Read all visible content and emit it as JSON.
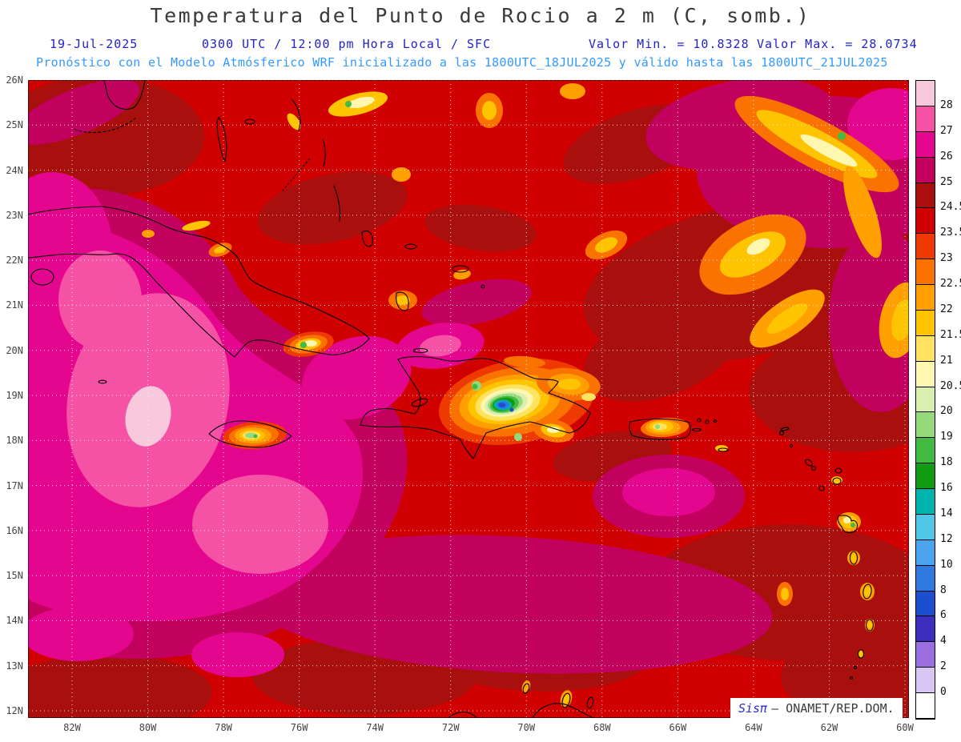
{
  "header": {
    "title": "Temperatura del Punto de Rocio a 2 m (C, somb.)",
    "date": "19-Jul-2025",
    "time": "0300 UTC / 12:00 pm Hora Local / SFC",
    "min_label": "Valor Min. = 10.8328",
    "max_label": "Valor Max. = 28.0734",
    "model_line": "Pronóstico con el Modelo Atmósferico WRF inicializado a las 1800UTC_18JUL2025 y válido hasta las  1800UTC_21JUL2025"
  },
  "map": {
    "lat_labels": [
      "26N",
      "25N",
      "24N",
      "23N",
      "22N",
      "21N",
      "20N",
      "19N",
      "18N",
      "17N",
      "16N",
      "15N",
      "14N",
      "13N",
      "12N"
    ],
    "lon_labels": [
      "82W",
      "80W",
      "78W",
      "76W",
      "74W",
      "72W",
      "70W",
      "68W",
      "66W",
      "64W",
      "62W",
      "60W"
    ]
  },
  "colorbar": {
    "cells": [
      "#f8c8dc",
      "#f552a6",
      "#e5068f",
      "#c2005e",
      "#a80f0d",
      "#d10000",
      "#ee3a00",
      "#fa7300",
      "#ffa000",
      "#ffc400",
      "#ffe35e",
      "#fff6b0",
      "#d8efad",
      "#94da7a",
      "#41bb41",
      "#119c11",
      "#00b4ae",
      "#4fc8e8",
      "#4aa5ee",
      "#2e7ae0",
      "#1b4fd0",
      "#3d2fbd",
      "#9a6ede",
      "#d9c6f2",
      "#ffffff"
    ],
    "labels": [
      "28",
      "27",
      "26",
      "25",
      "24.5",
      "23.5",
      "23",
      "22.5",
      "22",
      "21.5",
      "21",
      "20.5",
      "20",
      "19",
      "18",
      "16",
      "14",
      "12",
      "10",
      "8",
      "6",
      "4",
      "2",
      "0"
    ]
  },
  "watermark": {
    "brand": "Sisπ",
    "text": "– ONAMET/REP.DOM."
  },
  "chart_data": {
    "type": "heatmap",
    "title": "Temperatura del Punto de Rocio a 2 m (C, somb.)",
    "variable": "Dew point temperature at 2 m",
    "units": "C",
    "valid_time": "19-Jul-2025 0300 UTC / 12:00 pm Hora Local / SFC",
    "value_min": 10.8328,
    "value_max": 28.0734,
    "model": "WRF inicializado 1800UTC_18JUL2025, válido hasta 1800UTC_21JUL2025",
    "lon_range": [
      "82W",
      "60W"
    ],
    "lat_range": [
      "12N",
      "26N"
    ],
    "contour_levels": [
      0,
      2,
      4,
      6,
      8,
      10,
      12,
      14,
      16,
      18,
      19,
      20,
      20.5,
      21,
      21.5,
      22,
      22.5,
      23,
      23.5,
      24.5,
      25,
      26,
      27,
      28
    ],
    "legend_position": "right",
    "grid": "dotted 1deg lat / 2deg lon"
  }
}
